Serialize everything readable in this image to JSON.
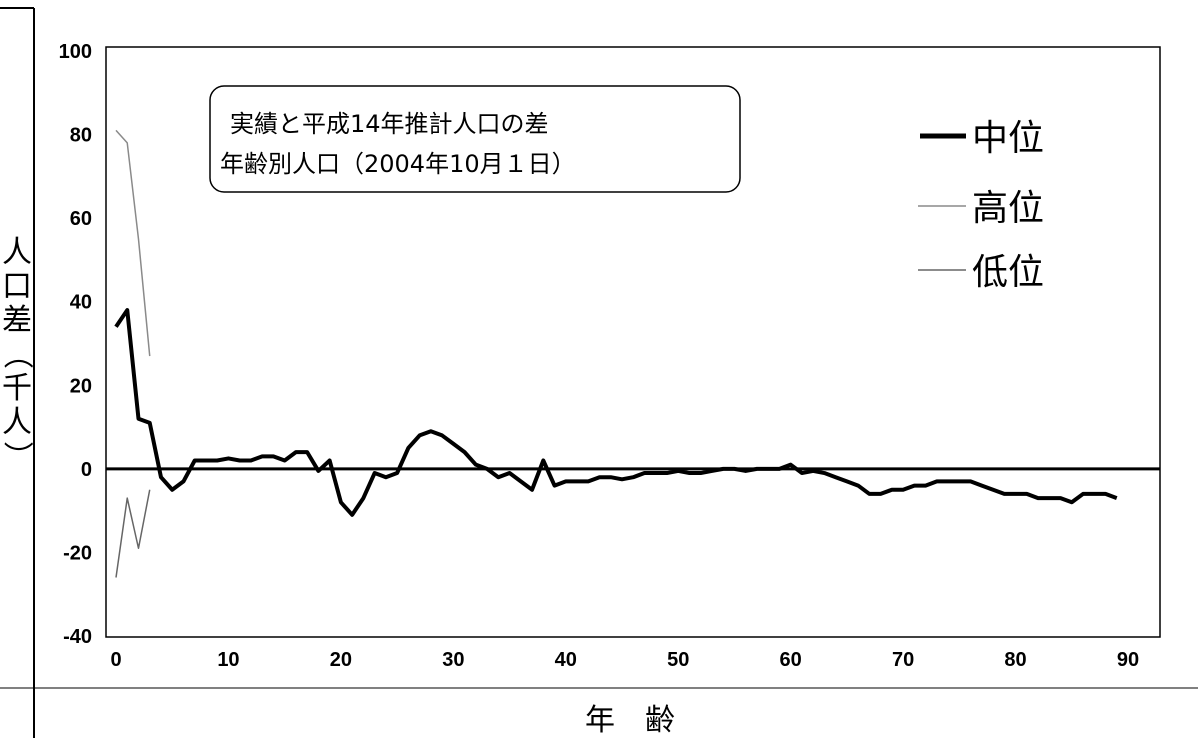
{
  "chart_data": {
    "type": "line",
    "title_lines": [
      "実績と平成14年推計人口の差",
      "年齢別人口（2004年10月１日）"
    ],
    "xlabel": "年　齢",
    "ylabel": "人口差（千人）",
    "xlim": [
      0,
      90
    ],
    "ylim": [
      -40,
      100
    ],
    "x_ticks": [
      0,
      10,
      20,
      30,
      40,
      50,
      60,
      70,
      80,
      90
    ],
    "y_ticks": [
      -40,
      -20,
      0,
      20,
      40,
      60,
      80,
      100
    ],
    "x_tick_labels": [
      "0",
      "10",
      "20",
      "30",
      "40",
      "50",
      "60",
      "70",
      "80",
      "90"
    ],
    "y_tick_labels": [
      "-40",
      "-20",
      "0",
      "20",
      "40",
      "60",
      "80",
      "100"
    ],
    "grid": false,
    "legend_position": "top-right",
    "series": [
      {
        "name": "中位",
        "color": "#000000",
        "x": [
          0,
          1,
          2,
          3,
          4,
          5,
          6,
          7,
          8,
          9,
          10,
          11,
          12,
          13,
          14,
          15,
          16,
          17,
          18,
          19,
          20,
          21,
          22,
          23,
          24,
          25,
          26,
          27,
          28,
          29,
          30,
          31,
          32,
          33,
          34,
          35,
          36,
          37,
          38,
          39,
          40,
          41,
          42,
          43,
          44,
          45,
          46,
          47,
          48,
          49,
          50,
          51,
          52,
          53,
          54,
          55,
          56,
          57,
          58,
          59,
          60,
          61,
          62,
          63,
          64,
          65,
          66,
          67,
          68,
          69,
          70,
          71,
          72,
          73,
          74,
          75,
          76,
          77,
          78,
          79,
          80,
          81,
          82,
          83,
          84,
          85,
          86,
          87,
          88,
          89
        ],
        "values": [
          34,
          38,
          12,
          11,
          -2,
          -5,
          -3,
          2,
          2,
          2,
          2.5,
          2,
          2,
          3,
          3,
          2,
          4,
          4,
          -0.5,
          2,
          -8,
          -11,
          -7,
          -1,
          -2,
          -1,
          5,
          8,
          9,
          8,
          6,
          4,
          1,
          0,
          -2,
          -1,
          -3,
          -5,
          2,
          -4,
          -3,
          -3,
          -3,
          -2,
          -2,
          -2.5,
          -2,
          -1,
          -1,
          -1,
          -0.5,
          -1,
          -1,
          -0.5,
          0,
          0,
          -0.5,
          0,
          0,
          0,
          1,
          -1,
          -0.5,
          -1,
          -2,
          -3,
          -4,
          -6,
          -6,
          -5,
          -5,
          -4,
          -4,
          -3,
          -3,
          -3,
          -3,
          -4,
          -5,
          -6,
          -6,
          -6,
          -7,
          -7,
          -7,
          -8,
          -6,
          -6,
          -6,
          -7
        ]
      },
      {
        "name": "高位",
        "color": "#8a8a8a",
        "x": [
          0,
          1,
          2,
          3
        ],
        "values": [
          81,
          78,
          55,
          27
        ]
      },
      {
        "name": "低位",
        "color": "#666666",
        "x": [
          0,
          1,
          2,
          3
        ],
        "values": [
          -26,
          -7,
          -19,
          -5
        ]
      }
    ]
  }
}
